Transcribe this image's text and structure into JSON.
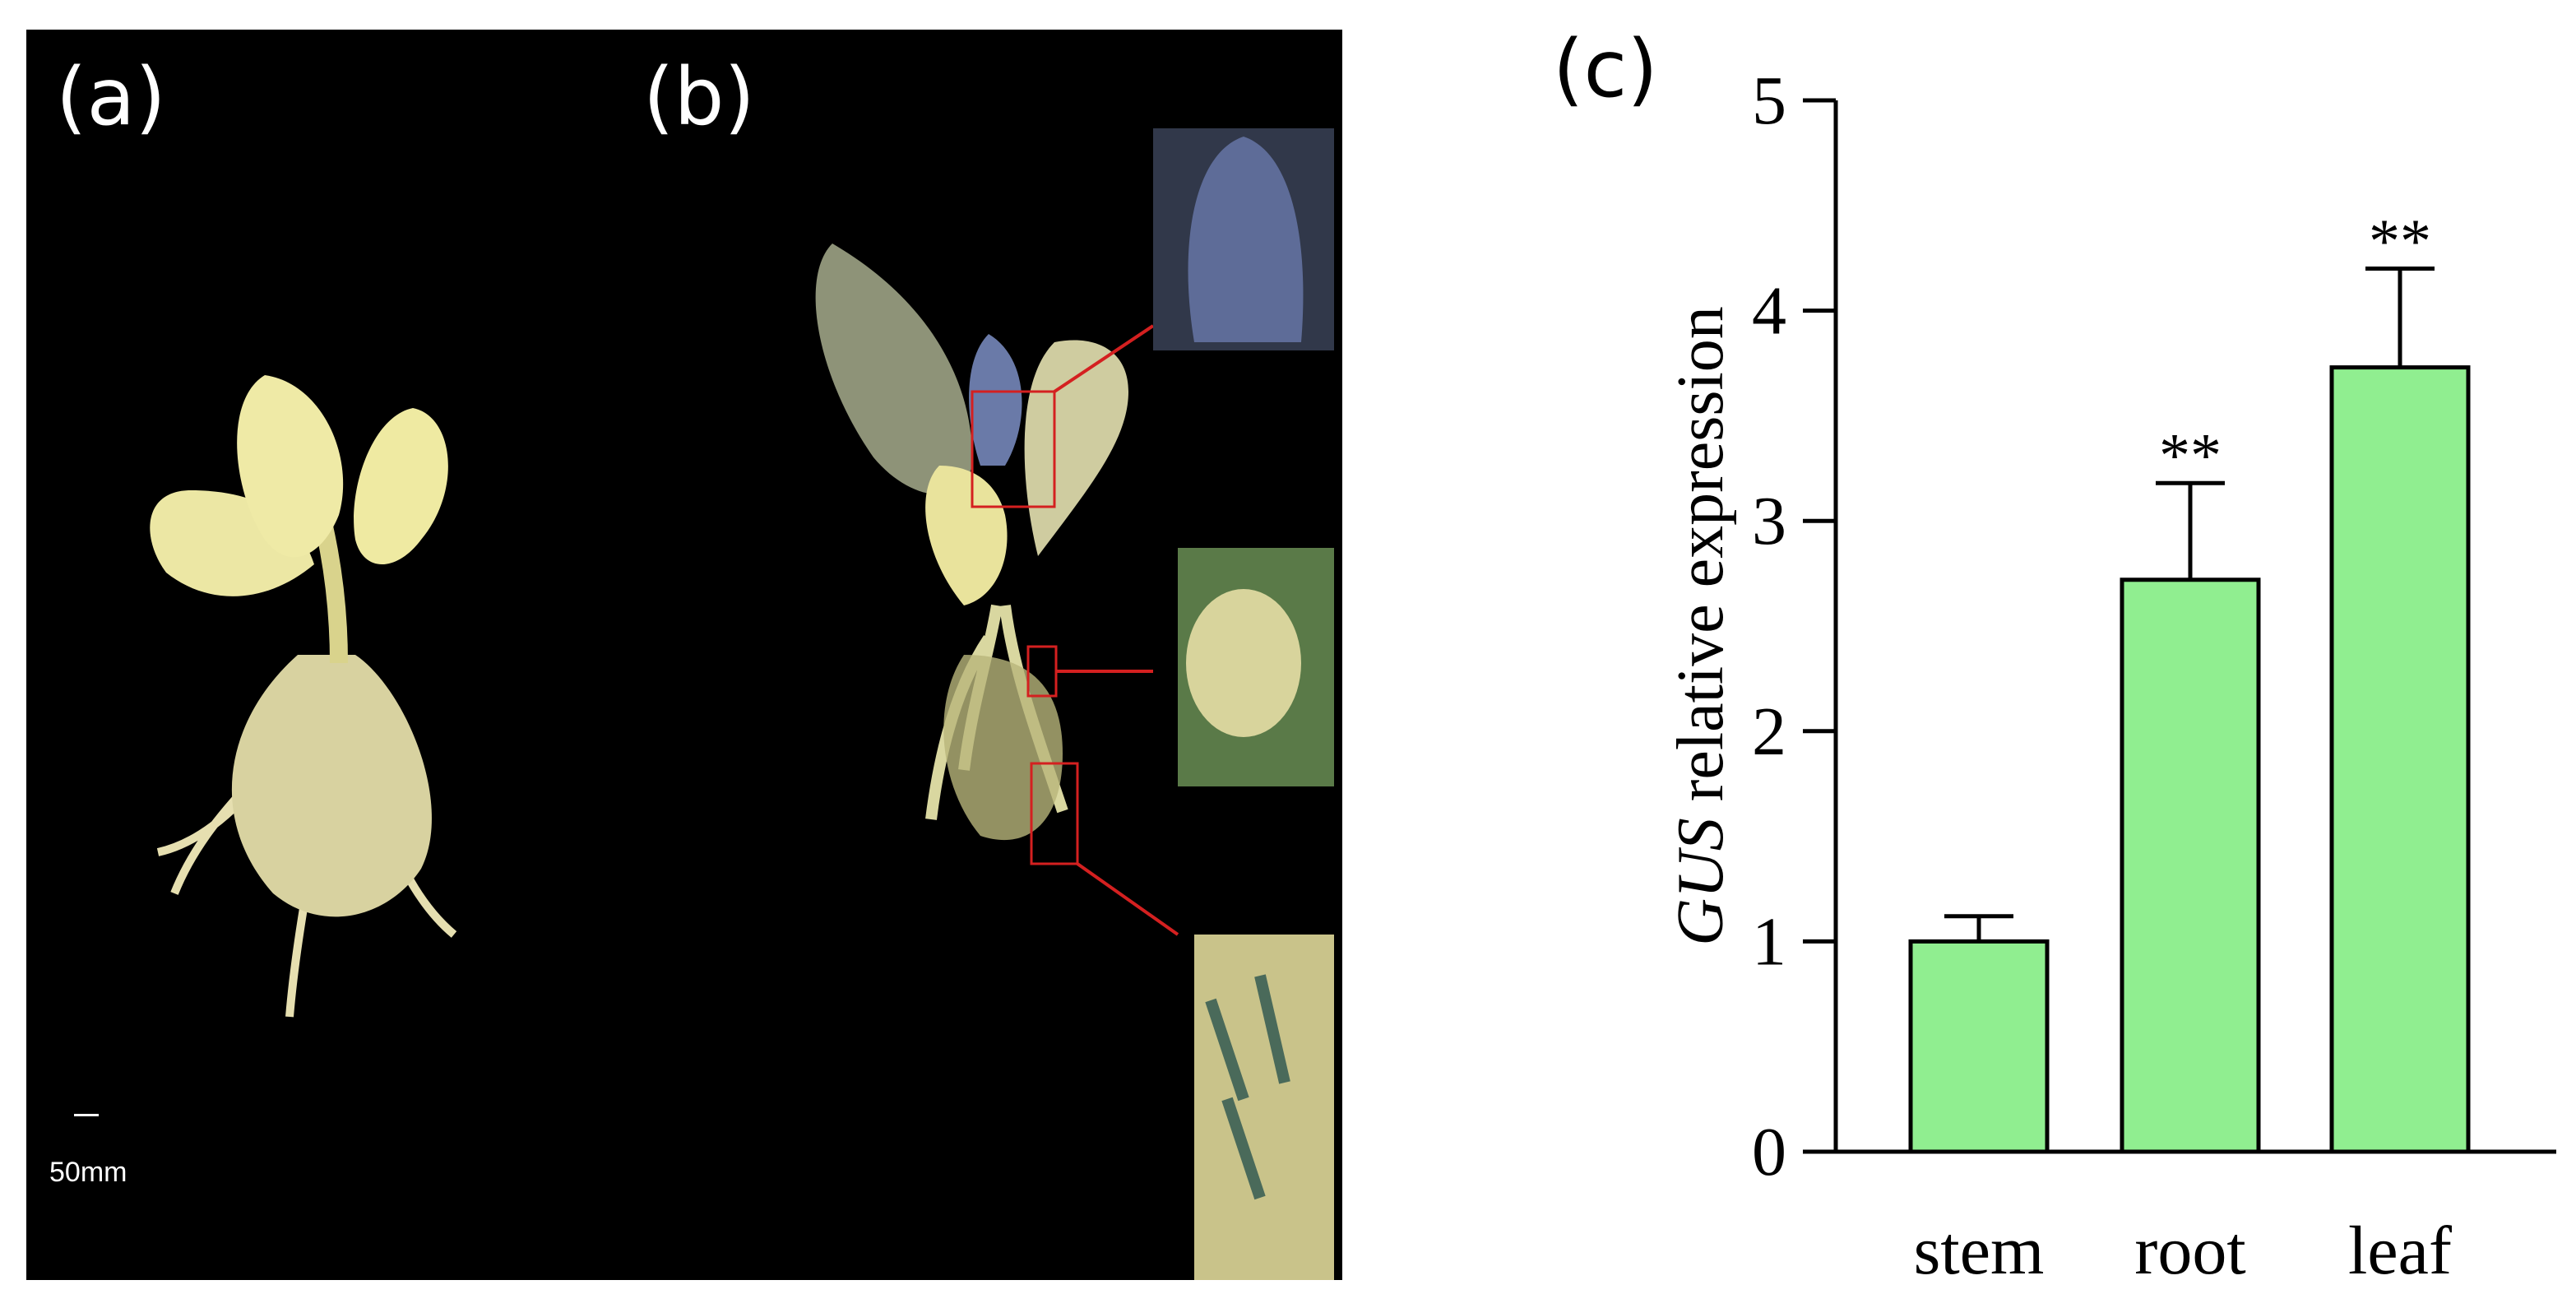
{
  "panels": {
    "a": {
      "label": "(a)",
      "scale_text": "50mm"
    },
    "b": {
      "label": "(b)"
    },
    "c": {
      "label": "(c)"
    }
  },
  "colors": {
    "background_photo": "#000000",
    "bar_fill": "#90ee90",
    "bar_stroke": "#000000",
    "highlight_box": "#d42020",
    "leaf_yellow": "#e8e4a0",
    "leaf_blue": "#5a6fa0"
  },
  "chart_data": {
    "type": "bar",
    "categories": [
      "stem",
      "root",
      "leaf"
    ],
    "values": [
      1.0,
      2.72,
      3.73
    ],
    "error_upper": [
      0.12,
      0.46,
      0.47
    ],
    "significance": [
      "",
      "**",
      "**"
    ],
    "ylabel_italic": "GUS",
    "ylabel_rest": " relative expression",
    "ylim": [
      0,
      5
    ],
    "yticks": [
      0,
      1,
      2,
      3,
      4,
      5
    ],
    "grid": false,
    "legend": "none"
  }
}
